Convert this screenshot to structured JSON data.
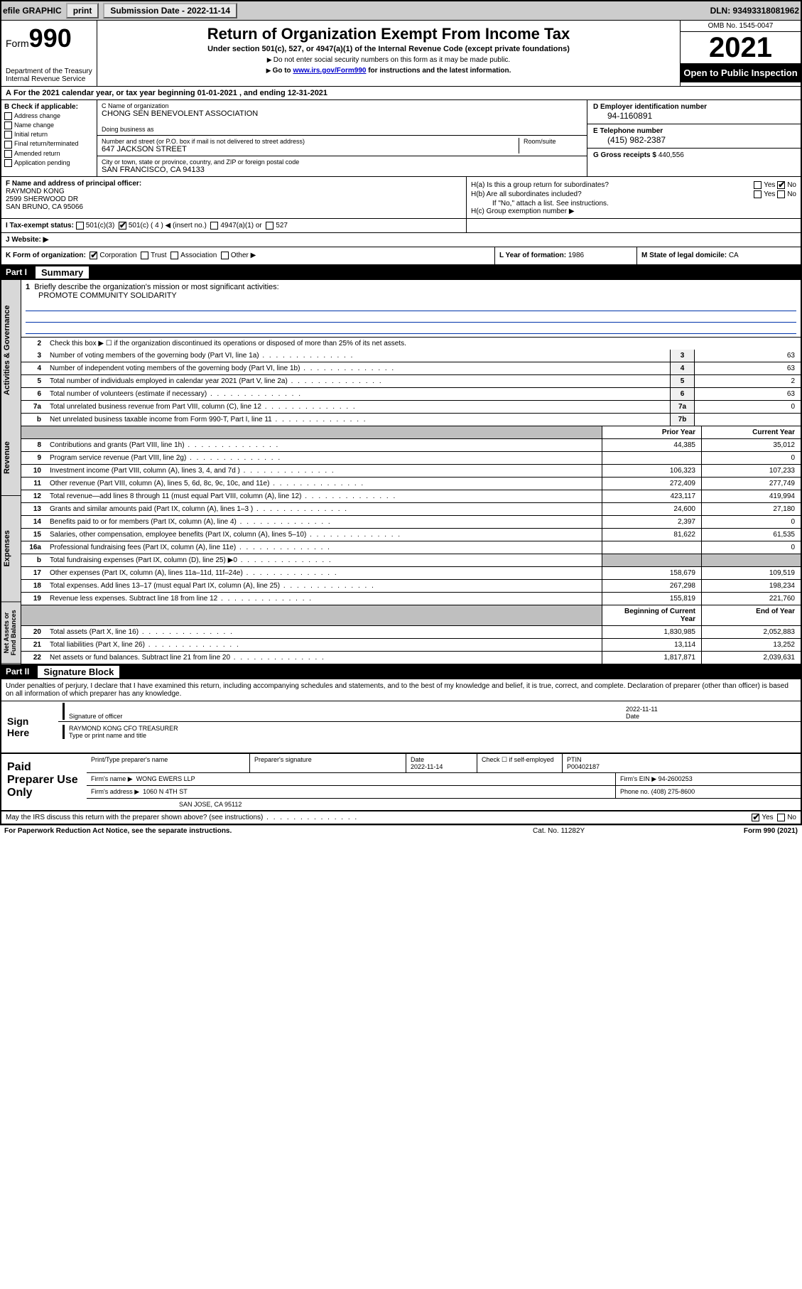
{
  "topbar": {
    "efile_label": "efile GRAPHIC",
    "print_btn": "print",
    "submission_label": "Submission Date - 2022-11-14",
    "dln": "DLN: 93493318081962"
  },
  "header": {
    "form_word": "Form",
    "form_num": "990",
    "dept": "Department of the Treasury",
    "irs": "Internal Revenue Service",
    "title": "Return of Organization Exempt From Income Tax",
    "sub": "Under section 501(c), 527, or 4947(a)(1) of the Internal Revenue Code (except private foundations)",
    "note1": "Do not enter social security numbers on this form as it may be made public.",
    "note2_pre": "Go to ",
    "note2_link": "www.irs.gov/Form990",
    "note2_post": " for instructions and the latest information.",
    "omb": "OMB No. 1545-0047",
    "year": "2021",
    "open": "Open to Public Inspection"
  },
  "line_a": "For the 2021 calendar year, or tax year beginning 01-01-2021   , and ending 12-31-2021",
  "section_b": {
    "hdr": "B Check if applicable:",
    "items": [
      "Address change",
      "Name change",
      "Initial return",
      "Final return/terminated",
      "Amended return",
      "Application pending"
    ]
  },
  "section_c": {
    "name_lab": "C Name of organization",
    "name": "CHONG SEN BENEVOLENT ASSOCIATION",
    "dba_lab": "Doing business as",
    "dba": "",
    "street_lab": "Number and street (or P.O. box if mail is not delivered to street address)",
    "room_lab": "Room/suite",
    "street": "647 JACKSON STREET",
    "city_lab": "City or town, state or province, country, and ZIP or foreign postal code",
    "city": "SAN FRANCISCO, CA  94133"
  },
  "section_d": {
    "lab": "D Employer identification number",
    "val": "94-1160891"
  },
  "section_e": {
    "lab": "E Telephone number",
    "val": "(415) 982-2387"
  },
  "section_g": {
    "lab": "G Gross receipts $",
    "val": "440,556"
  },
  "section_f": {
    "lab": "F Name and address of principal officer:",
    "name": "RAYMOND KONG",
    "addr1": "2599 SHERWOOD DR",
    "addr2": "SAN BRUNO, CA  95066"
  },
  "section_h": {
    "a_lab": "H(a)  Is this a group return for subordinates?",
    "a_yes": "Yes",
    "a_no": "No",
    "b_lab": "H(b)  Are all subordinates included?",
    "b_note": "If \"No,\" attach a list. See instructions.",
    "c_lab": "H(c)  Group exemption number ▶"
  },
  "section_i": {
    "lab": "I   Tax-exempt status:",
    "opt1": "501(c)(3)",
    "opt2": "501(c) ( 4 ) ◀ (insert no.)",
    "opt3": "4947(a)(1) or",
    "opt4": "527"
  },
  "section_j": {
    "lab": "J   Website: ▶"
  },
  "section_k": {
    "lab": "K Form of organization:",
    "opts": [
      "Corporation",
      "Trust",
      "Association",
      "Other ▶"
    ]
  },
  "section_l": {
    "lab": "L Year of formation:",
    "val": "1986"
  },
  "section_m": {
    "lab": "M State of legal domicile:",
    "val": "CA"
  },
  "part1": {
    "num": "Part I",
    "title": "Summary"
  },
  "sidebar": {
    "gov": "Activities & Governance",
    "rev": "Revenue",
    "exp": "Expenses",
    "net": "Net Assets or Fund Balances"
  },
  "mission": {
    "lab": "Briefly describe the organization's mission or most significant activities:",
    "text": "PROMOTE COMMUNITY SOLIDARITY"
  },
  "gov_rows": [
    {
      "n": "2",
      "d": "Check this box ▶ ☐  if the organization discontinued its operations or disposed of more than 25% of its net assets."
    },
    {
      "n": "3",
      "d": "Number of voting members of the governing body (Part VI, line 1a)",
      "box": "3",
      "v": "63"
    },
    {
      "n": "4",
      "d": "Number of independent voting members of the governing body (Part VI, line 1b)",
      "box": "4",
      "v": "63"
    },
    {
      "n": "5",
      "d": "Total number of individuals employed in calendar year 2021 (Part V, line 2a)",
      "box": "5",
      "v": "2"
    },
    {
      "n": "6",
      "d": "Total number of volunteers (estimate if necessary)",
      "box": "6",
      "v": "63"
    },
    {
      "n": "7a",
      "d": "Total unrelated business revenue from Part VIII, column (C), line 12",
      "box": "7a",
      "v": "0"
    },
    {
      "n": "b",
      "d": "Net unrelated business taxable income from Form 990-T, Part I, line 11",
      "box": "7b",
      "v": ""
    }
  ],
  "py_cy_hdr": {
    "prior": "Prior Year",
    "curr": "Current Year"
  },
  "rev_rows": [
    {
      "n": "8",
      "d": "Contributions and grants (Part VIII, line 1h)",
      "p": "44,385",
      "c": "35,012"
    },
    {
      "n": "9",
      "d": "Program service revenue (Part VIII, line 2g)",
      "p": "",
      "c": "0"
    },
    {
      "n": "10",
      "d": "Investment income (Part VIII, column (A), lines 3, 4, and 7d )",
      "p": "106,323",
      "c": "107,233"
    },
    {
      "n": "11",
      "d": "Other revenue (Part VIII, column (A), lines 5, 6d, 8c, 9c, 10c, and 11e)",
      "p": "272,409",
      "c": "277,749"
    },
    {
      "n": "12",
      "d": "Total revenue—add lines 8 through 11 (must equal Part VIII, column (A), line 12)",
      "p": "423,117",
      "c": "419,994"
    }
  ],
  "exp_rows": [
    {
      "n": "13",
      "d": "Grants and similar amounts paid (Part IX, column (A), lines 1–3 )",
      "p": "24,600",
      "c": "27,180"
    },
    {
      "n": "14",
      "d": "Benefits paid to or for members (Part IX, column (A), line 4)",
      "p": "2,397",
      "c": "0"
    },
    {
      "n": "15",
      "d": "Salaries, other compensation, employee benefits (Part IX, column (A), lines 5–10)",
      "p": "81,622",
      "c": "61,535"
    },
    {
      "n": "16a",
      "d": "Professional fundraising fees (Part IX, column (A), line 11e)",
      "p": "",
      "c": "0"
    },
    {
      "n": "b",
      "d": "Total fundraising expenses (Part IX, column (D), line 25) ▶0",
      "p": "shade",
      "c": "shade"
    },
    {
      "n": "17",
      "d": "Other expenses (Part IX, column (A), lines 11a–11d, 11f–24e)",
      "p": "158,679",
      "c": "109,519"
    },
    {
      "n": "18",
      "d": "Total expenses. Add lines 13–17 (must equal Part IX, column (A), line 25)",
      "p": "267,298",
      "c": "198,234"
    },
    {
      "n": "19",
      "d": "Revenue less expenses. Subtract line 18 from line 12",
      "p": "155,819",
      "c": "221,760"
    }
  ],
  "net_hdr": {
    "prior": "Beginning of Current Year",
    "curr": "End of Year"
  },
  "net_rows": [
    {
      "n": "20",
      "d": "Total assets (Part X, line 16)",
      "p": "1,830,985",
      "c": "2,052,883"
    },
    {
      "n": "21",
      "d": "Total liabilities (Part X, line 26)",
      "p": "13,114",
      "c": "13,252"
    },
    {
      "n": "22",
      "d": "Net assets or fund balances. Subtract line 21 from line 20",
      "p": "1,817,871",
      "c": "2,039,631"
    }
  ],
  "part2": {
    "num": "Part II",
    "title": "Signature Block"
  },
  "sig": {
    "intro": "Under penalties of perjury, I declare that I have examined this return, including accompanying schedules and statements, and to the best of my knowledge and belief, it is true, correct, and complete. Declaration of preparer (other than officer) is based on all information of which preparer has any knowledge.",
    "sign_here": "Sign Here",
    "sig_of_officer": "Signature of officer",
    "date_lab": "Date",
    "date_val": "2022-11-11",
    "name_title": "RAYMOND KONG CFO TREASURER",
    "name_title_lab": "Type or print name and title"
  },
  "prep": {
    "title": "Paid Preparer Use Only",
    "h1": "Print/Type preparer's name",
    "h2": "Preparer's signature",
    "h3": "Date",
    "h3v": "2022-11-14",
    "h4": "Check ☐ if self-employed",
    "h5": "PTIN",
    "h5v": "P00402187",
    "firm_lab": "Firm's name    ▶",
    "firm": "WONG EWERS LLP",
    "ein_lab": "Firm's EIN ▶",
    "ein": "94-2600253",
    "addr_lab": "Firm's address ▶",
    "addr1": "1060 N 4TH ST",
    "addr2": "SAN JOSE, CA  95112",
    "phone_lab": "Phone no.",
    "phone": "(408) 275-8600"
  },
  "footer": {
    "discuss": "May the IRS discuss this return with the preparer shown above? (see instructions)",
    "yes": "Yes",
    "no": "No",
    "pra": "For Paperwork Reduction Act Notice, see the separate instructions.",
    "cat": "Cat. No. 11282Y",
    "form": "Form 990 (2021)"
  },
  "colors": {
    "topbar_bg": "#cccccc",
    "black": "#000000",
    "side_bg": "#d8d8d8",
    "shade": "#bfbfbf",
    "link": "#0000cc",
    "rule": "#0033aa"
  }
}
